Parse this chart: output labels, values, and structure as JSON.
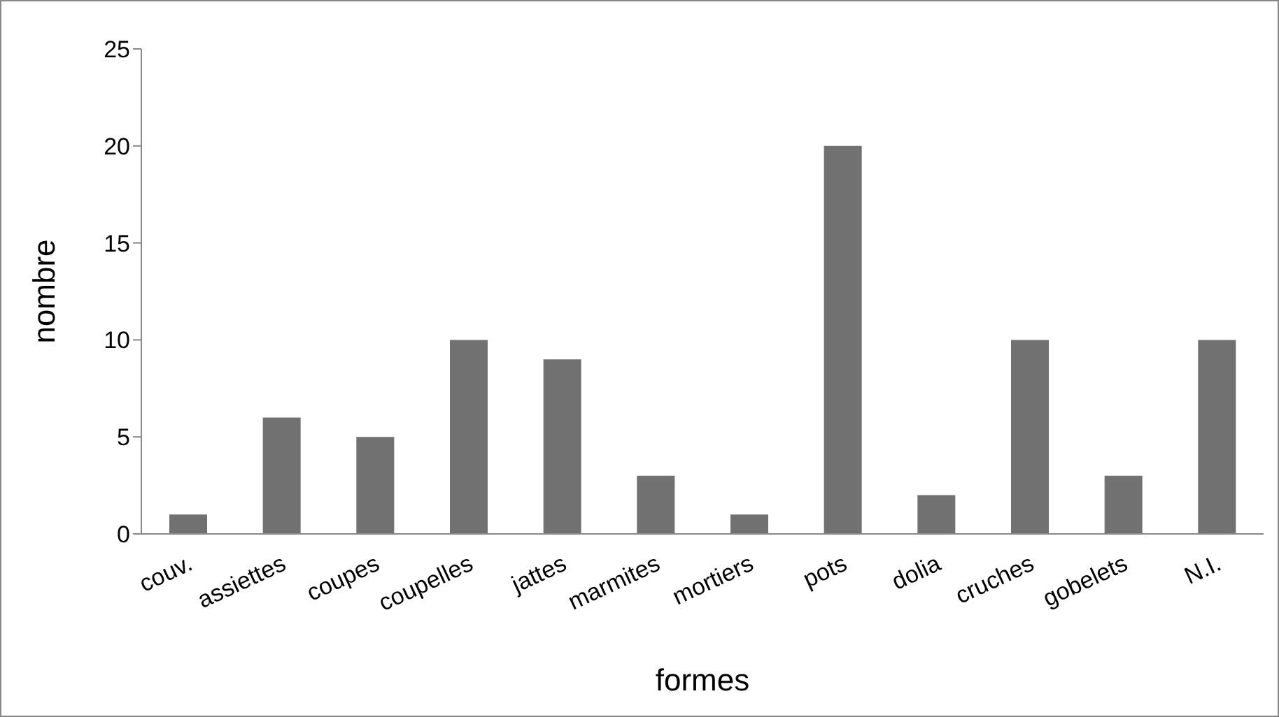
{
  "chart_data": {
    "type": "bar",
    "xlabel": "formes",
    "ylabel": "nombre",
    "categories": [
      "couv.",
      "assiettes",
      "coupes",
      "coupelles",
      "jattes",
      "marmites",
      "mortiers",
      "pots",
      "dolia",
      "cruches",
      "gobelets",
      "N.I."
    ],
    "values": [
      1,
      6,
      5,
      10,
      9,
      3,
      1,
      20,
      2,
      10,
      3,
      10
    ],
    "color": "#717171",
    "ylim": [
      0,
      25
    ],
    "yticks": [
      0,
      5,
      10,
      15,
      20,
      25
    ],
    "grid": false,
    "legend": false
  }
}
